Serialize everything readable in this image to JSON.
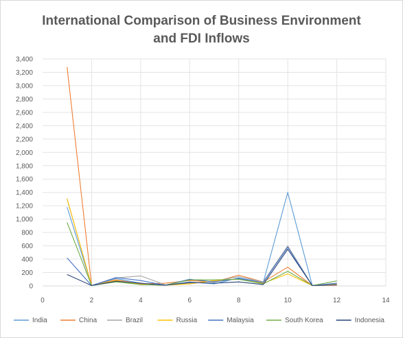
{
  "chart_data": {
    "type": "line",
    "title": "International Comparison of Business Environment and FDI Inflows",
    "title_lines": [
      "International Comparison of Business Environment",
      "and FDI Inflows"
    ],
    "xlabel": "",
    "ylabel": "",
    "xlim": [
      0,
      14
    ],
    "ylim": [
      0,
      3400
    ],
    "x_ticks": [
      "0",
      "2",
      "4",
      "6",
      "8",
      "10",
      "12",
      "14"
    ],
    "y_ticks": [
      "0",
      "200",
      "400",
      "600",
      "800",
      "1,000",
      "1,200",
      "1,400",
      "1,600",
      "1,800",
      "2,000",
      "2,200",
      "2,400",
      "2,600",
      "2,800",
      "3,000",
      "3,200",
      "3,400"
    ],
    "x_tick_values": [
      0,
      2,
      4,
      6,
      8,
      10,
      12,
      14
    ],
    "y_tick_values": [
      0,
      200,
      400,
      600,
      800,
      1000,
      1200,
      1400,
      1600,
      1800,
      2000,
      2200,
      2400,
      2600,
      2800,
      3000,
      3200,
      3400
    ],
    "grid": true,
    "legend_position": "bottom",
    "x": [
      1,
      2,
      3,
      4,
      5,
      6,
      7,
      8,
      9,
      10,
      11,
      12
    ],
    "series": [
      {
        "name": "India",
        "color": "#5b9bd5",
        "values": [
          1180,
          5,
          110,
          40,
          10,
          60,
          30,
          120,
          50,
          1400,
          5,
          40
        ]
      },
      {
        "name": "China",
        "color": "#ed7d31",
        "values": [
          3280,
          5,
          90,
          30,
          40,
          80,
          60,
          160,
          60,
          280,
          5,
          10
        ]
      },
      {
        "name": "Brazil",
        "color": "#a5a5a5",
        "values": [
          1300,
          5,
          120,
          150,
          15,
          40,
          70,
          140,
          60,
          600,
          5,
          30
        ]
      },
      {
        "name": "Russia",
        "color": "#ffc000",
        "values": [
          1310,
          5,
          80,
          20,
          10,
          30,
          80,
          100,
          40,
          180,
          5,
          20
        ]
      },
      {
        "name": "Malaysia",
        "color": "#4472c4",
        "values": [
          420,
          5,
          125,
          80,
          10,
          100,
          60,
          110,
          50,
          580,
          5,
          40
        ]
      },
      {
        "name": "South Korea",
        "color": "#70ad47",
        "values": [
          950,
          5,
          60,
          20,
          10,
          90,
          90,
          100,
          30,
          220,
          5,
          75
        ]
      },
      {
        "name": "Indonesia",
        "color": "#264478",
        "values": [
          170,
          5,
          70,
          40,
          10,
          50,
          40,
          60,
          20,
          550,
          5,
          15
        ]
      }
    ]
  }
}
